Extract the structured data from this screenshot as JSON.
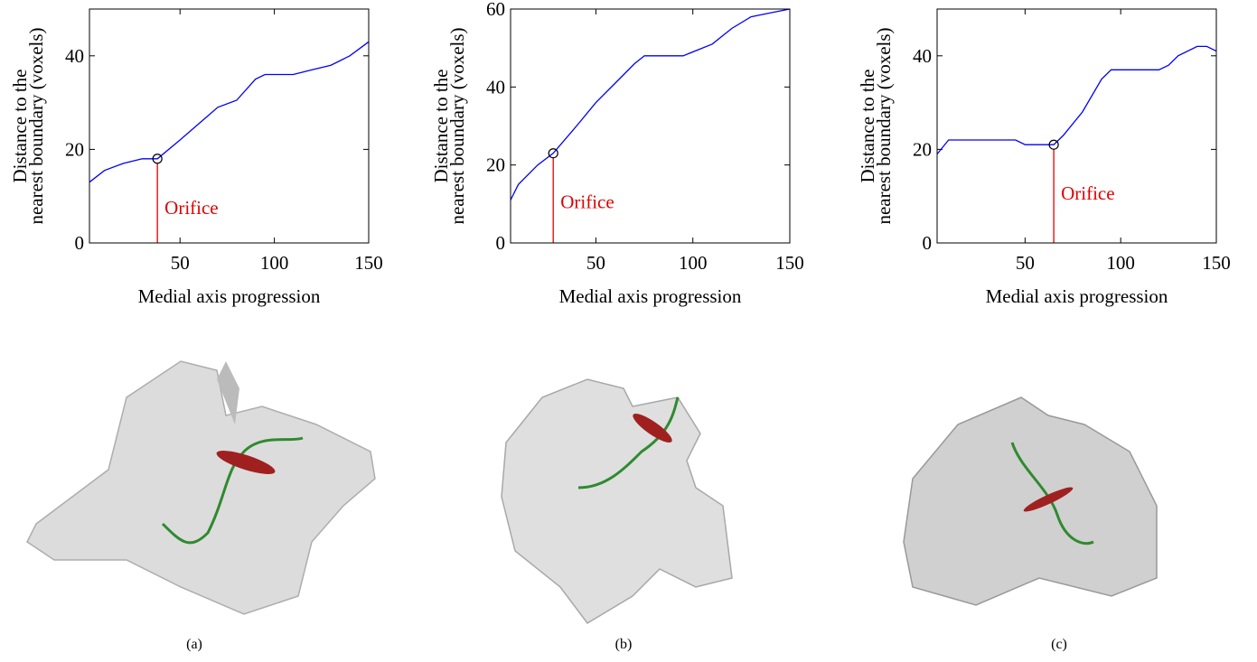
{
  "chart_data": [
    {
      "type": "line",
      "xlabel": "Medial axis progression",
      "ylabel": [
        "Distance to the",
        "nearest boundary (voxels)"
      ],
      "xlim": [
        2,
        150
      ],
      "ylim": [
        0,
        50
      ],
      "xticks": [
        50,
        100,
        150
      ],
      "yticks": [
        0,
        20,
        40
      ],
      "color": "#0000ff",
      "x": [
        2,
        10,
        20,
        30,
        38,
        50,
        60,
        70,
        80,
        90,
        95,
        110,
        120,
        130,
        140,
        150
      ],
      "values": [
        13,
        15.5,
        17,
        18,
        18,
        22,
        25.5,
        29,
        30.5,
        35,
        36,
        36,
        37,
        38,
        40,
        43
      ],
      "marker": {
        "x": 38,
        "y": 18,
        "label": "Orifice",
        "color": "#e00000"
      }
    },
    {
      "type": "line",
      "xlabel": "Medial axis progression",
      "ylabel": [
        "Distance to the",
        "nearest boundary (voxels)"
      ],
      "xlim": [
        6,
        150
      ],
      "ylim": [
        0,
        60
      ],
      "xticks": [
        50,
        100,
        150
      ],
      "yticks": [
        0,
        20,
        40,
        60
      ],
      "color": "#0000ff",
      "x": [
        6,
        10,
        20,
        28,
        40,
        50,
        60,
        70,
        75,
        95,
        110,
        120,
        130,
        140,
        150
      ],
      "values": [
        11,
        15,
        20,
        23,
        30,
        36,
        41,
        46,
        48,
        48,
        51,
        55,
        58,
        59,
        60
      ],
      "marker": {
        "x": 28,
        "y": 23,
        "label": "Orifice",
        "color": "#e00000"
      }
    },
    {
      "type": "line",
      "xlabel": "Medial axis progression",
      "ylabel": [
        "Distance to the",
        "nearest boundary (voxels)"
      ],
      "xlim": [
        4,
        150
      ],
      "ylim": [
        0,
        50
      ],
      "xticks": [
        50,
        100,
        150
      ],
      "yticks": [
        0,
        20,
        40
      ],
      "color": "#0000ff",
      "x": [
        4,
        10,
        20,
        45,
        50,
        65,
        70,
        80,
        90,
        95,
        120,
        125,
        130,
        140,
        145,
        150
      ],
      "values": [
        19,
        22,
        22,
        22,
        21,
        21,
        23,
        28,
        35,
        37,
        37,
        38,
        40,
        42,
        42,
        41
      ],
      "marker": {
        "x": 65,
        "y": 21,
        "label": "Orifice",
        "color": "#e00000"
      }
    }
  ],
  "captions": [
    "(a)",
    "(b)",
    "(c)"
  ]
}
